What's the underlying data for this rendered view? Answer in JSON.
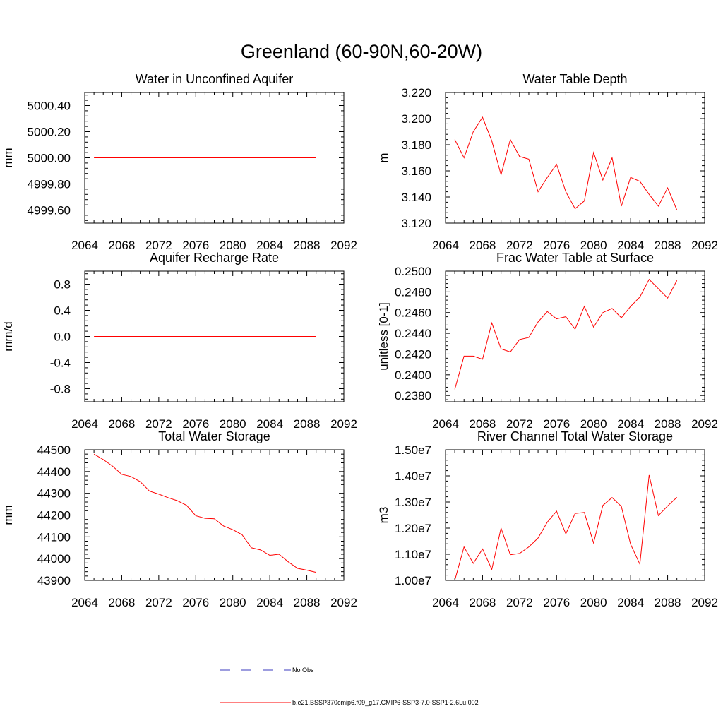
{
  "figure": {
    "title": "Greenland (60-90N,60-20W)"
  },
  "legend": {
    "items": [
      {
        "label": "No Obs",
        "color": "#3b3bbf",
        "style": "dashed"
      },
      {
        "label": "b.e21.BSSP370cmip6.f09_g17.CMIP6-SSP3-7.0-SSP1-2.6Lu.002",
        "color": "#ff0000",
        "style": "solid"
      }
    ]
  },
  "chart_data": [
    {
      "type": "line",
      "title": "Water in Unconfined Aquifer",
      "ylabel": "mm",
      "xlim": [
        2064,
        2092
      ],
      "ylim": [
        4999.5,
        5000.5
      ],
      "xticks": [
        "2064",
        "2068",
        "2072",
        "2076",
        "2080",
        "2084",
        "2088",
        "2092"
      ],
      "yticks": [
        "4999.60",
        "4999.80",
        "5000.00",
        "5000.20",
        "5000.40"
      ],
      "x": [
        2065,
        2066,
        2067,
        2068,
        2069,
        2070,
        2071,
        2072,
        2073,
        2074,
        2075,
        2076,
        2077,
        2078,
        2079,
        2080,
        2081,
        2082,
        2083,
        2084,
        2085,
        2086,
        2087,
        2088,
        2089
      ],
      "series": [
        {
          "color": "#ff0000",
          "values": [
            5000,
            5000,
            5000,
            5000,
            5000,
            5000,
            5000,
            5000,
            5000,
            5000,
            5000,
            5000,
            5000,
            5000,
            5000,
            5000,
            5000,
            5000,
            5000,
            5000,
            5000,
            5000,
            5000,
            5000,
            5000
          ]
        }
      ]
    },
    {
      "type": "line",
      "title": "Water Table Depth",
      "ylabel": "m",
      "xlim": [
        2064,
        2092
      ],
      "ylim": [
        3.12,
        3.22
      ],
      "xticks": [
        "2064",
        "2068",
        "2072",
        "2076",
        "2080",
        "2084",
        "2088",
        "2092"
      ],
      "yticks": [
        "3.120",
        "3.140",
        "3.160",
        "3.180",
        "3.200",
        "3.220"
      ],
      "x": [
        2065,
        2066,
        2067,
        2068,
        2069,
        2070,
        2071,
        2072,
        2073,
        2074,
        2075,
        2076,
        2077,
        2078,
        2079,
        2080,
        2081,
        2082,
        2083,
        2084,
        2085,
        2086,
        2087,
        2088,
        2089
      ],
      "series": [
        {
          "color": "#ff0000",
          "values": [
            3.184,
            3.17,
            3.19,
            3.201,
            3.183,
            3.157,
            3.184,
            3.171,
            3.169,
            3.144,
            3.155,
            3.165,
            3.144,
            3.131,
            3.137,
            3.174,
            3.153,
            3.17,
            3.133,
            3.155,
            3.152,
            3.142,
            3.133,
            3.147,
            3.13
          ]
        }
      ]
    },
    {
      "type": "line",
      "title": "Aquifer Recharge Rate",
      "ylabel": "mm/d",
      "xlim": [
        2064,
        2092
      ],
      "ylim": [
        -1.0,
        1.0
      ],
      "xticks": [
        "2064",
        "2068",
        "2072",
        "2076",
        "2080",
        "2084",
        "2088",
        "2092"
      ],
      "yticks": [
        "-0.8",
        "-0.4",
        "0.0",
        "0.4",
        "0.8"
      ],
      "x": [
        2065,
        2066,
        2067,
        2068,
        2069,
        2070,
        2071,
        2072,
        2073,
        2074,
        2075,
        2076,
        2077,
        2078,
        2079,
        2080,
        2081,
        2082,
        2083,
        2084,
        2085,
        2086,
        2087,
        2088,
        2089
      ],
      "series": [
        {
          "color": "#ff0000",
          "values": [
            0,
            0,
            0,
            0,
            0,
            0,
            0,
            0,
            0,
            0,
            0,
            0,
            0,
            0,
            0,
            0,
            0,
            0,
            0,
            0,
            0,
            0,
            0,
            0,
            0
          ]
        }
      ]
    },
    {
      "type": "line",
      "title": "Frac Water Table at Surface",
      "ylabel": "unitless [0-1]",
      "xlim": [
        2064,
        2092
      ],
      "ylim": [
        0.2374,
        0.25
      ],
      "xticks": [
        "2064",
        "2068",
        "2072",
        "2076",
        "2080",
        "2084",
        "2088",
        "2092"
      ],
      "yticks": [
        "0.2380",
        "0.2400",
        "0.2420",
        "0.2440",
        "0.2460",
        "0.2480",
        "0.2500"
      ],
      "x": [
        2065,
        2066,
        2067,
        2068,
        2069,
        2070,
        2071,
        2072,
        2073,
        2074,
        2075,
        2076,
        2077,
        2078,
        2079,
        2080,
        2081,
        2082,
        2083,
        2084,
        2085,
        2086,
        2087,
        2088,
        2089
      ],
      "series": [
        {
          "color": "#ff0000",
          "values": [
            0.2386,
            0.2418,
            0.2418,
            0.2415,
            0.245,
            0.2425,
            0.2422,
            0.2434,
            0.2436,
            0.2451,
            0.2461,
            0.2454,
            0.2456,
            0.2444,
            0.2466,
            0.2446,
            0.246,
            0.2464,
            0.2455,
            0.2466,
            0.2475,
            0.2492,
            0.2483,
            0.2474,
            0.2491
          ]
        }
      ]
    },
    {
      "type": "line",
      "title": "Total Water Storage",
      "ylabel": "mm",
      "xlim": [
        2064,
        2092
      ],
      "ylim": [
        43900,
        44500
      ],
      "xticks": [
        "2064",
        "2068",
        "2072",
        "2076",
        "2080",
        "2084",
        "2088",
        "2092"
      ],
      "yticks": [
        "43900",
        "44000",
        "44100",
        "44200",
        "44300",
        "44400",
        "44500"
      ],
      "x": [
        2065,
        2066,
        2067,
        2068,
        2069,
        2070,
        2071,
        2072,
        2073,
        2074,
        2075,
        2076,
        2077,
        2078,
        2079,
        2080,
        2081,
        2082,
        2083,
        2084,
        2085,
        2086,
        2087,
        2088,
        2089
      ],
      "series": [
        {
          "color": "#ff0000",
          "values": [
            44480,
            44455,
            44425,
            44387,
            44377,
            44353,
            44310,
            44296,
            44280,
            44266,
            44245,
            44197,
            44185,
            44183,
            44150,
            44133,
            44110,
            44050,
            44040,
            44015,
            44020,
            43985,
            43955,
            43947,
            43937
          ]
        }
      ]
    },
    {
      "type": "line",
      "title": "River Channel Total Water Storage",
      "ylabel": "m3",
      "xlim": [
        2064,
        2092
      ],
      "ylim": [
        10000000,
        15000000
      ],
      "xticks": [
        "2064",
        "2068",
        "2072",
        "2076",
        "2080",
        "2084",
        "2088",
        "2092"
      ],
      "yticks": [
        "1.00e7",
        "1.10e7",
        "1.20e7",
        "1.30e7",
        "1.40e7",
        "1.50e7"
      ],
      "x": [
        2065,
        2066,
        2067,
        2068,
        2069,
        2070,
        2071,
        2072,
        2073,
        2074,
        2075,
        2076,
        2077,
        2078,
        2079,
        2080,
        2081,
        2082,
        2083,
        2084,
        2085,
        2086,
        2087,
        2088,
        2089
      ],
      "series": [
        {
          "color": "#ff0000",
          "values": [
            10000000,
            11280000,
            10650000,
            11200000,
            10420000,
            12000000,
            10980000,
            11030000,
            11280000,
            11620000,
            12230000,
            12650000,
            11780000,
            12560000,
            12600000,
            11430000,
            12870000,
            13170000,
            12830000,
            11380000,
            10620000,
            14030000,
            12480000,
            12850000,
            13180000
          ]
        }
      ]
    }
  ]
}
